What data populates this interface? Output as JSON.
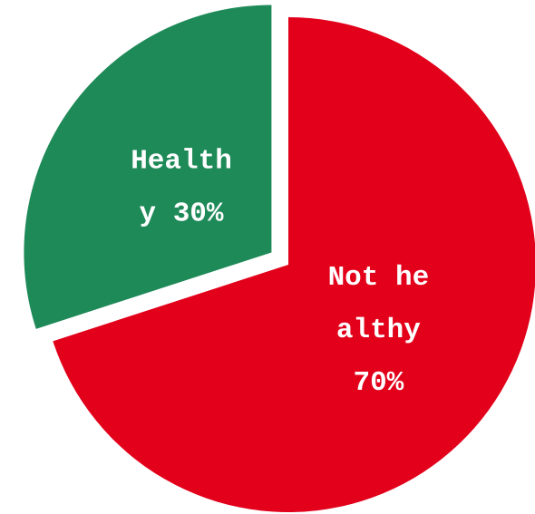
{
  "chart_data": {
    "type": "pie",
    "categories": [
      "Not healthy",
      "Healthy"
    ],
    "values": [
      70,
      30
    ],
    "value_labels": [
      "70%",
      "30%"
    ],
    "colors": [
      "#e2001a",
      "#1e8a58"
    ]
  }
}
